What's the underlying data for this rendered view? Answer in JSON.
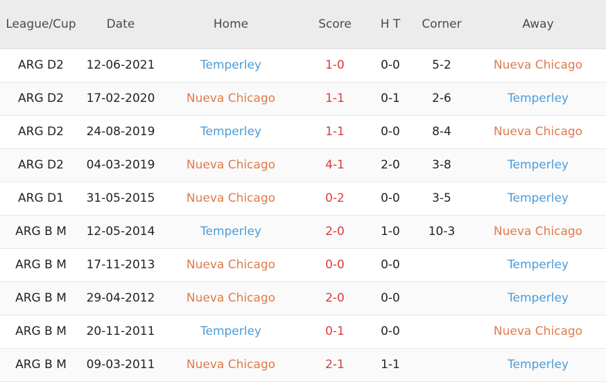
{
  "colors": {
    "temperley": "#4a9bd8",
    "nueva_chicago": "#e07a4a",
    "score": "#d93b3b",
    "header_bg": "#ececec"
  },
  "headers": {
    "league": "League/Cup",
    "date": "Date",
    "home": "Home",
    "score": "Score",
    "ht": "H T",
    "corner": "Corner",
    "away": "Away"
  },
  "rows": [
    {
      "league": "ARG D2",
      "date": "12-06-2021",
      "home": "Temperley",
      "score": "1-0",
      "ht": "0-0",
      "corner": "5-2",
      "away": "Nueva Chicago"
    },
    {
      "league": "ARG D2",
      "date": "17-02-2020",
      "home": "Nueva Chicago",
      "score": "1-1",
      "ht": "0-1",
      "corner": "2-6",
      "away": "Temperley"
    },
    {
      "league": "ARG D2",
      "date": "24-08-2019",
      "home": "Temperley",
      "score": "1-1",
      "ht": "0-0",
      "corner": "8-4",
      "away": "Nueva Chicago"
    },
    {
      "league": "ARG D2",
      "date": "04-03-2019",
      "home": "Nueva Chicago",
      "score": "4-1",
      "ht": "2-0",
      "corner": "3-8",
      "away": "Temperley"
    },
    {
      "league": "ARG D1",
      "date": "31-05-2015",
      "home": "Nueva Chicago",
      "score": "0-2",
      "ht": "0-0",
      "corner": "3-5",
      "away": "Temperley"
    },
    {
      "league": "ARG B M",
      "date": "12-05-2014",
      "home": "Temperley",
      "score": "2-0",
      "ht": "1-0",
      "corner": "10-3",
      "away": "Nueva Chicago"
    },
    {
      "league": "ARG B M",
      "date": "17-11-2013",
      "home": "Nueva Chicago",
      "score": "0-0",
      "ht": "0-0",
      "corner": "",
      "away": "Temperley"
    },
    {
      "league": "ARG B M",
      "date": "29-04-2012",
      "home": "Nueva Chicago",
      "score": "2-0",
      "ht": "0-0",
      "corner": "",
      "away": "Temperley"
    },
    {
      "league": "ARG B M",
      "date": "20-11-2011",
      "home": "Temperley",
      "score": "0-1",
      "ht": "0-0",
      "corner": "",
      "away": "Nueva Chicago"
    },
    {
      "league": "ARG B M",
      "date": "09-03-2011",
      "home": "Nueva Chicago",
      "score": "2-1",
      "ht": "1-1",
      "corner": "",
      "away": "Temperley"
    }
  ]
}
